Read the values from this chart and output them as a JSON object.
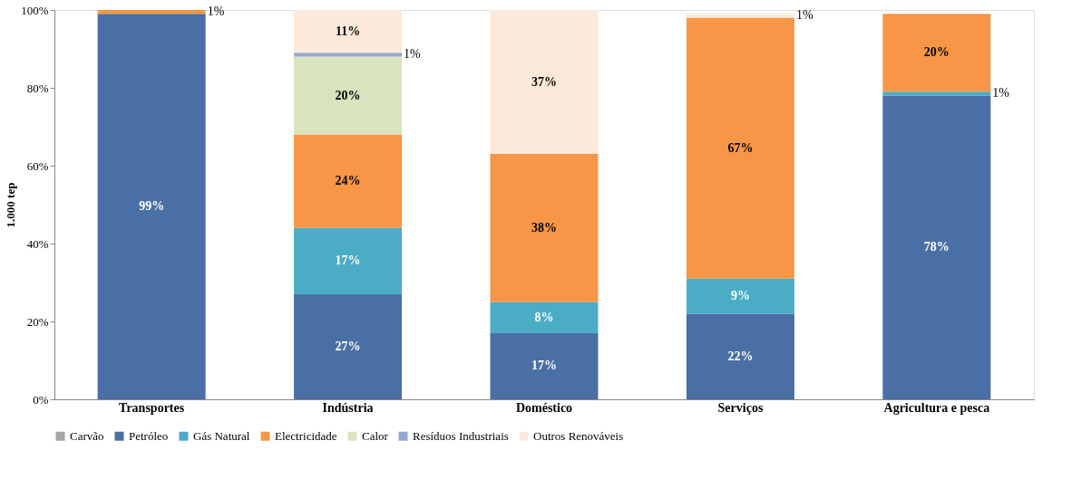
{
  "chart_data": {
    "type": "bar",
    "stacked": true,
    "ylabel": "1.000 tep",
    "categories": [
      "Transportes",
      "Indústria",
      "Doméstico",
      "Serviços",
      "Agricultura e pesca"
    ],
    "series": [
      {
        "name": "Carvão",
        "color": "#a5a5a5",
        "values": [
          null,
          null,
          null,
          null,
          null
        ],
        "value_labels": [
          null,
          null,
          null,
          null,
          null
        ]
      },
      {
        "name": "Petróleo",
        "color": "#4a6fa5",
        "values": [
          99,
          27,
          17,
          22,
          78
        ],
        "value_labels": [
          "99%",
          "27%",
          "17%",
          "22%",
          "78%"
        ]
      },
      {
        "name": "Gás Natural",
        "color": "#4bacc6",
        "values": [
          null,
          17,
          8,
          9,
          1
        ],
        "value_labels": [
          null,
          "17%",
          "8%",
          "9%",
          "1%"
        ]
      },
      {
        "name": "Electricidade",
        "color": "#f79646",
        "values": [
          1,
          24,
          38,
          67,
          20
        ],
        "value_labels": [
          "1%",
          "24%",
          "38%",
          "67%",
          "20%"
        ]
      },
      {
        "name": "Calor",
        "color": "#d7e4bd",
        "values": [
          null,
          20,
          null,
          null,
          null
        ],
        "value_labels": [
          null,
          "20%",
          null,
          null,
          null
        ]
      },
      {
        "name": "Resíduos Industriais",
        "color": "#95a9d0",
        "values": [
          null,
          1,
          null,
          null,
          null
        ],
        "value_labels": [
          null,
          "1%",
          null,
          null,
          null
        ]
      },
      {
        "name": "Outros Renováveis",
        "color": "#fde9d9",
        "values": [
          null,
          11,
          37,
          1,
          null
        ],
        "value_labels": [
          null,
          "11%",
          "37%",
          "1%",
          null
        ]
      }
    ],
    "ylim": [
      0,
      100
    ],
    "yticks": [
      {
        "value": 0,
        "label": "0%"
      },
      {
        "value": 20,
        "label": "20%"
      },
      {
        "value": 40,
        "label": "40%"
      },
      {
        "value": 60,
        "label": "60%"
      },
      {
        "value": 80,
        "label": "80%"
      },
      {
        "value": 100,
        "label": "100%"
      }
    ],
    "grid": false,
    "legend": "bottom"
  }
}
